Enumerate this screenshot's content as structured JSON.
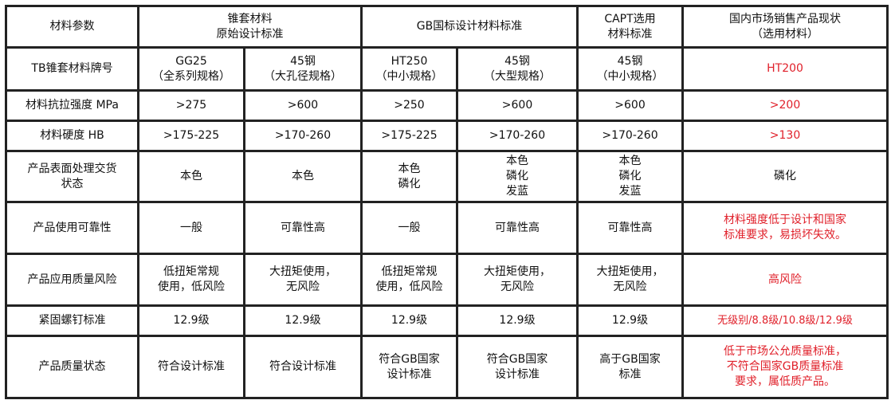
{
  "colors": {
    "text": "#111111",
    "border": "#222222",
    "highlight": "#e0202a"
  },
  "header": {
    "param": "材料参数",
    "group1": "锥套材料\n原始设计标准",
    "group2": "GB国标设计材料标准",
    "group3": "CAPT选用\n材料标准",
    "group4": "国内市场销售产品现状\n（选用材料）"
  },
  "rows": [
    {
      "label": "TB锥套材料牌号",
      "cells": [
        "GG25\n（全系列规格）",
        "45钢\n（大孔径规格）",
        "HT250\n（中小规格）",
        "45钢\n（大型规格）",
        "45钢\n（中小规格）",
        "HT200"
      ]
    },
    {
      "label": "材料抗拉强度 MPa",
      "cells": [
        ">275",
        ">600",
        ">250",
        ">600",
        ">600",
        ">200"
      ]
    },
    {
      "label": "材料硬度 HB",
      "cells": [
        ">175-225",
        ">170-260",
        ">175-225",
        ">170-260",
        ">170-260",
        ">130"
      ]
    },
    {
      "label": "产品表面处理交货\n状态",
      "cells": [
        "本色",
        "本色",
        "本色\n磷化",
        "本色\n磷化\n发蓝",
        "本色\n磷化\n发蓝",
        "磷化"
      ]
    },
    {
      "label": "产品使用可靠性",
      "cells": [
        "一般",
        "可靠性高",
        "一般",
        "可靠性高",
        "可靠性高",
        "材料强度低于设计和国家\n标准要求，易损坏失效。"
      ]
    },
    {
      "label": "产品应用质量风险",
      "cells": [
        "低扭矩常规\n使用，低风险",
        "大扭矩使用，\n无风险",
        "低扭矩常规\n使用，低风险",
        "大扭矩使用，\n无风险",
        "大扭矩使用，\n无风险",
        "高风险"
      ]
    },
    {
      "label": "紧固螺钉标准",
      "cells": [
        "12.9级",
        "12.9级",
        "12.9级",
        "12.9级",
        "12.9级",
        "无级别/8.8级/10.8级/12.9级"
      ]
    },
    {
      "label": "产品质量状态",
      "cells": [
        "符合设计标准",
        "符合设计标准",
        "符合GB国家\n设计标准",
        "符合GB国家\n设计标准",
        "高于GB国家\n标准",
        "低于市场公允质量标准，\n不符合国家GB质量标准\n要求，属低质产品。"
      ]
    }
  ]
}
